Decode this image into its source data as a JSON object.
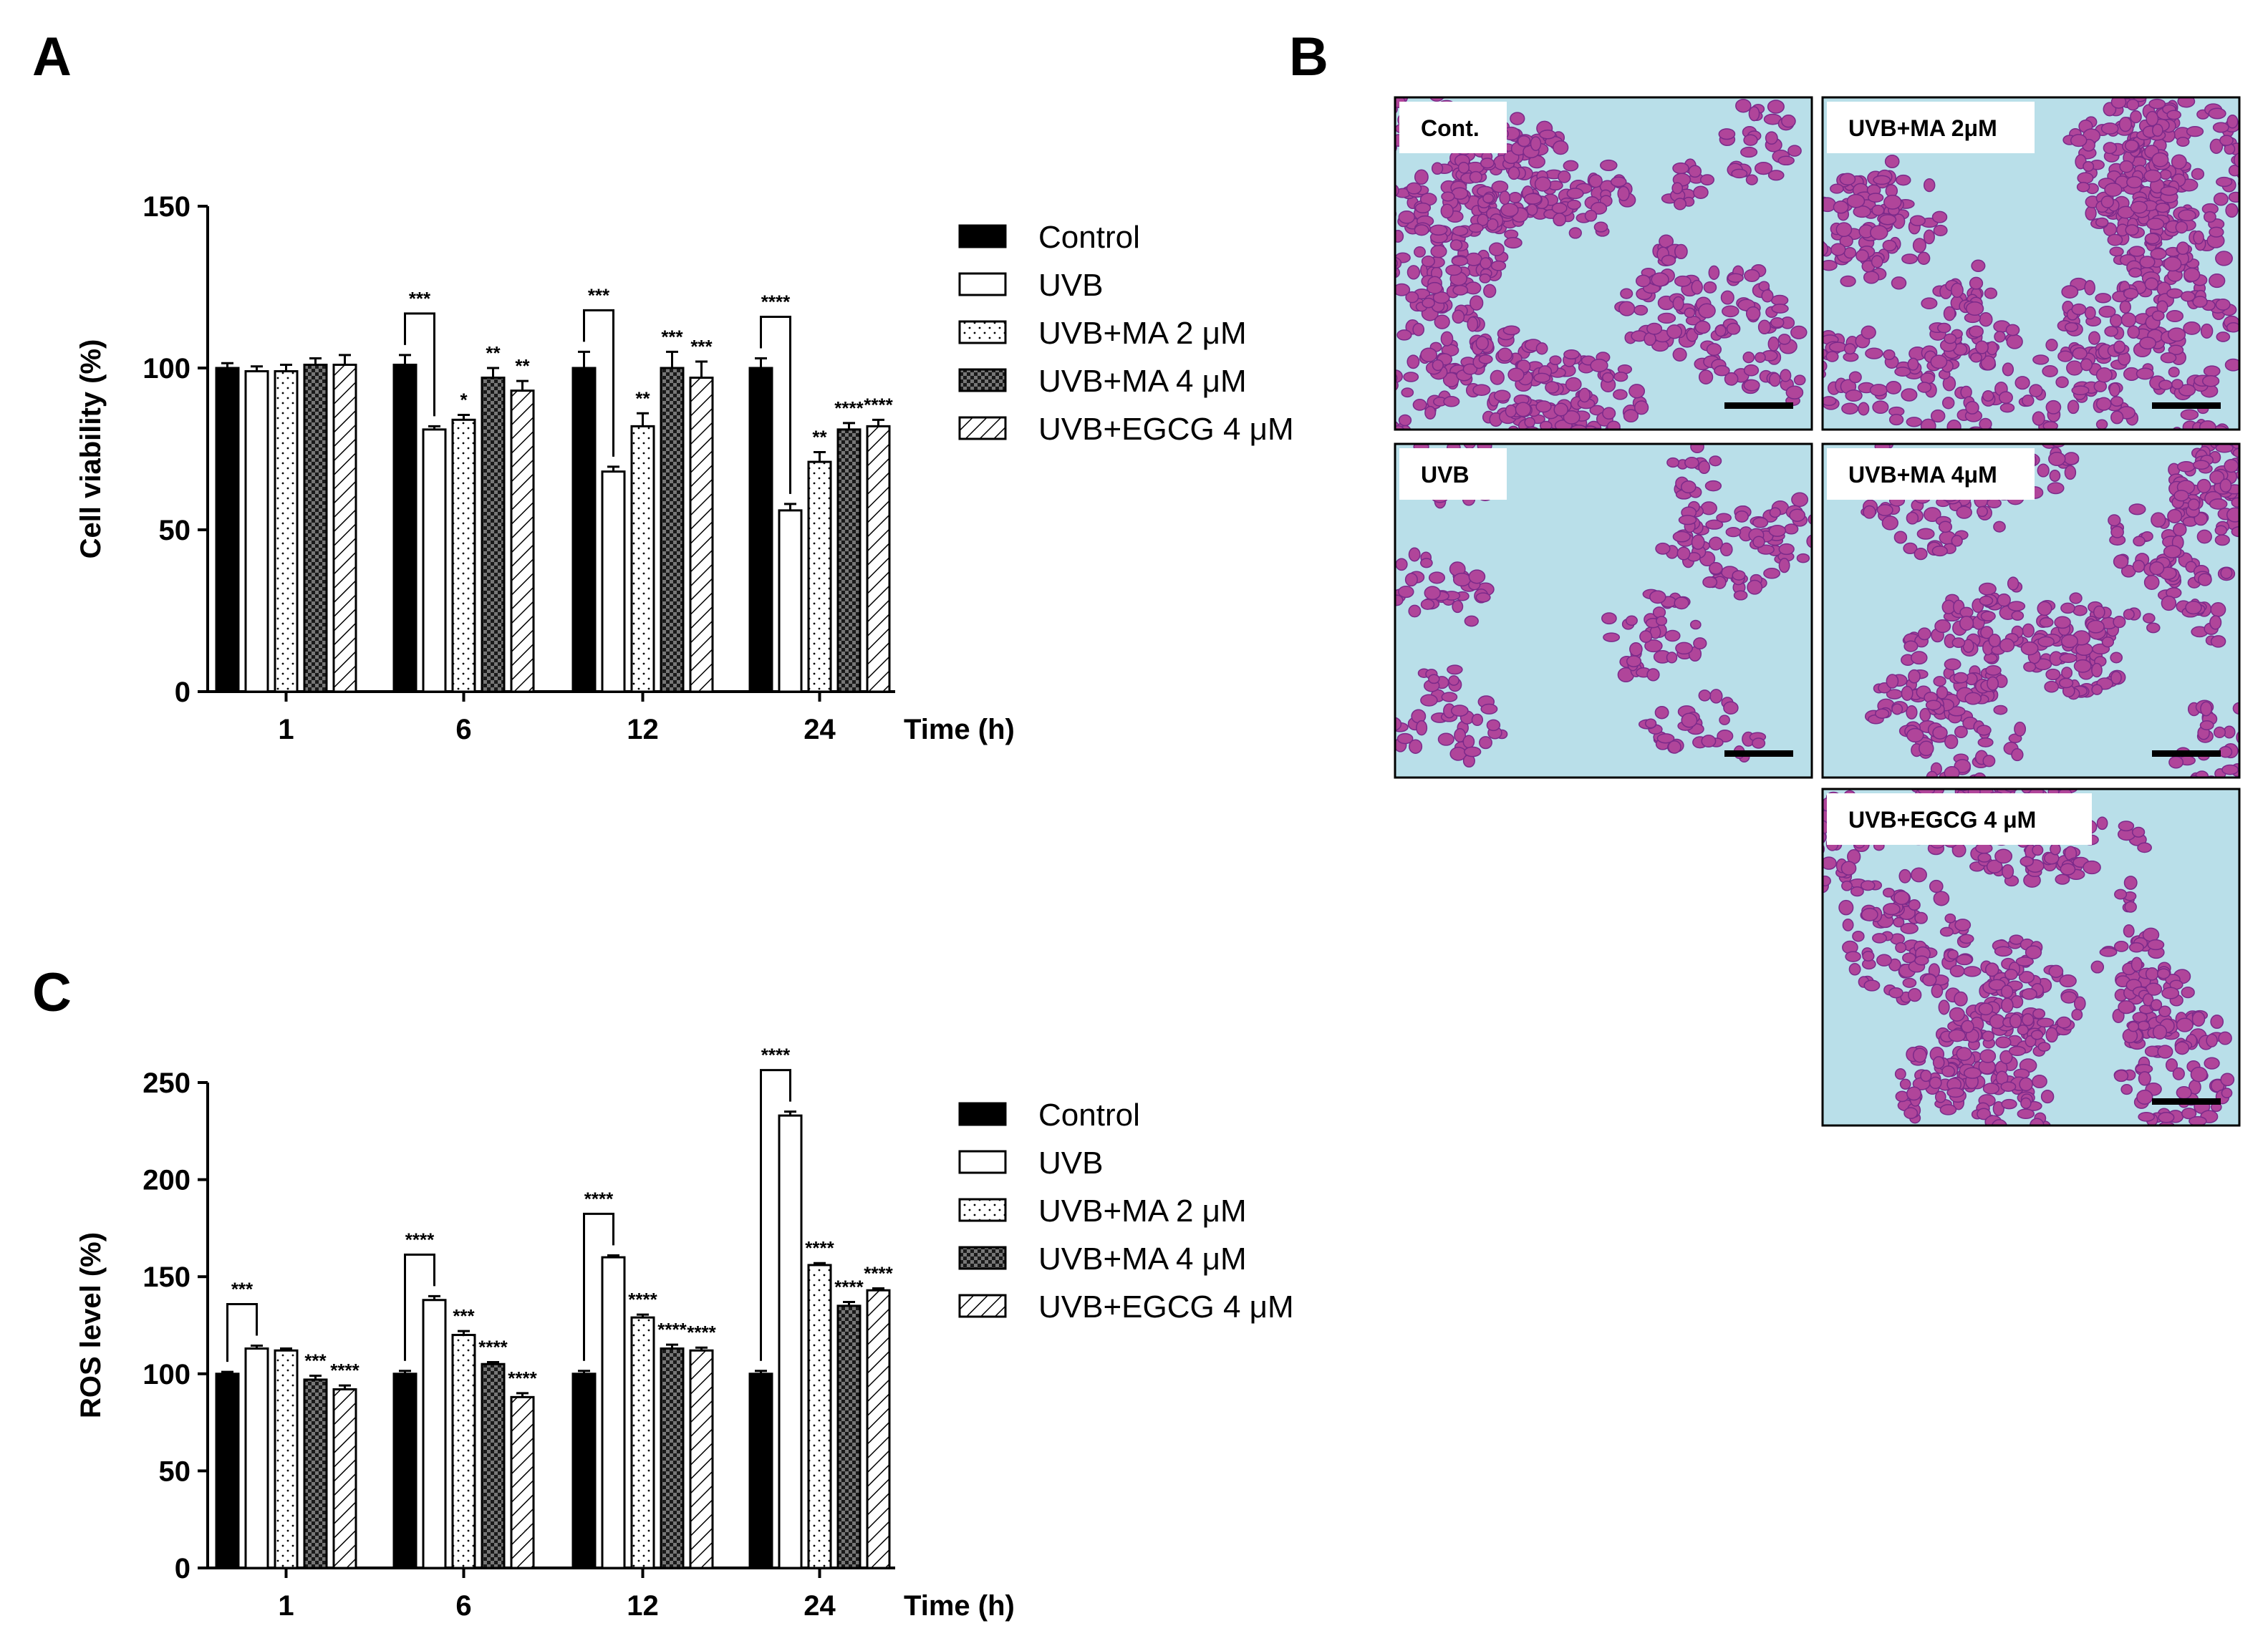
{
  "panels": {
    "a": "A",
    "b": "B",
    "c": "C"
  },
  "legend": {
    "items": [
      {
        "label": "Control",
        "pattern": "solid"
      },
      {
        "label": "UVB",
        "pattern": "white"
      },
      {
        "label": "UVB+MA 2 μM",
        "pattern": "dots"
      },
      {
        "label": "UVB+MA 4 μM",
        "pattern": "check"
      },
      {
        "label": "UVB+EGCG 4 μM",
        "pattern": "hatch"
      }
    ]
  },
  "chart_data": [
    {
      "id": "A",
      "type": "bar",
      "title": "",
      "xlabel": "Time (h)",
      "ylabel": "Cell viability (%)",
      "ylim": [
        0,
        150
      ],
      "yticks": [
        0,
        50,
        100,
        150
      ],
      "categories": [
        "1",
        "6",
        "12",
        "24"
      ],
      "series": [
        {
          "name": "Control",
          "values": [
            100,
            101,
            100,
            100
          ],
          "errors": [
            1.5,
            3,
            5,
            3
          ]
        },
        {
          "name": "UVB",
          "values": [
            99,
            81,
            68,
            56
          ],
          "errors": [
            1.5,
            1,
            1.5,
            2
          ]
        },
        {
          "name": "UVB+MA 2 μM",
          "values": [
            99,
            84,
            82,
            71
          ],
          "errors": [
            2,
            1.5,
            4,
            3
          ]
        },
        {
          "name": "UVB+MA 4 μM",
          "values": [
            101,
            97,
            100,
            81
          ],
          "errors": [
            2,
            3,
            5,
            2
          ]
        },
        {
          "name": "UVB+EGCG 4 μM",
          "values": [
            101,
            93,
            97,
            82
          ],
          "errors": [
            3,
            3,
            5,
            2
          ]
        }
      ],
      "significance": [
        {
          "category": 1,
          "bracket": true,
          "text": "***"
        },
        {
          "category": 1,
          "series": 2,
          "text": "*"
        },
        {
          "category": 1,
          "series": 3,
          "text": "**"
        },
        {
          "category": 1,
          "series": 4,
          "text": "**"
        },
        {
          "category": 2,
          "bracket": true,
          "text": "***"
        },
        {
          "category": 2,
          "series": 2,
          "text": "**"
        },
        {
          "category": 2,
          "series": 3,
          "text": "***"
        },
        {
          "category": 2,
          "series": 4,
          "text": "***"
        },
        {
          "category": 3,
          "bracket": true,
          "text": "****"
        },
        {
          "category": 3,
          "series": 2,
          "text": "**"
        },
        {
          "category": 3,
          "series": 3,
          "text": "****"
        },
        {
          "category": 3,
          "series": 4,
          "text": "****"
        }
      ]
    },
    {
      "id": "C",
      "type": "bar",
      "title": "",
      "xlabel": "Time (h)",
      "ylabel": "ROS level (%)",
      "ylim": [
        0,
        250
      ],
      "yticks": [
        0,
        50,
        100,
        150,
        200,
        250
      ],
      "categories": [
        "1",
        "6",
        "12",
        "24"
      ],
      "series": [
        {
          "name": "Control",
          "values": [
            100,
            100,
            100,
            100
          ],
          "errors": [
            1,
            1.5,
            1.5,
            1.5
          ]
        },
        {
          "name": "UVB",
          "values": [
            113,
            138,
            160,
            233
          ],
          "errors": [
            1.5,
            2,
            1,
            2
          ]
        },
        {
          "name": "UVB+MA 2 μM",
          "values": [
            112,
            120,
            129,
            156
          ],
          "errors": [
            1,
            2,
            1.5,
            1
          ]
        },
        {
          "name": "UVB+MA 4 μM",
          "values": [
            97,
            105,
            113,
            135
          ],
          "errors": [
            2,
            1,
            2,
            2
          ]
        },
        {
          "name": "UVB+EGCG 4 μM",
          "values": [
            92,
            88,
            112,
            143
          ],
          "errors": [
            2,
            2,
            1.5,
            1
          ]
        }
      ],
      "significance": [
        {
          "category": 0,
          "bracket": true,
          "text": "***"
        },
        {
          "category": 0,
          "series": 3,
          "text": "***"
        },
        {
          "category": 0,
          "series": 4,
          "text": "****"
        },
        {
          "category": 1,
          "bracket": true,
          "text": "****"
        },
        {
          "category": 1,
          "series": 2,
          "text": "***"
        },
        {
          "category": 1,
          "series": 3,
          "text": "****"
        },
        {
          "category": 1,
          "series": 4,
          "text": "****"
        },
        {
          "category": 2,
          "bracket": true,
          "text": "****"
        },
        {
          "category": 2,
          "series": 2,
          "text": "****"
        },
        {
          "category": 2,
          "series": 3,
          "text": "****"
        },
        {
          "category": 2,
          "series": 4,
          "text": "****"
        },
        {
          "category": 3,
          "bracket": true,
          "text": "****"
        },
        {
          "category": 3,
          "series": 2,
          "text": "****"
        },
        {
          "category": 3,
          "series": 3,
          "text": "****"
        },
        {
          "category": 3,
          "series": 4,
          "text": "****"
        }
      ]
    }
  ],
  "micrographs": [
    {
      "label": "Cont."
    },
    {
      "label": "UVB+MA 2μM"
    },
    {
      "label": "UVB"
    },
    {
      "label": "UVB+MA 4μM"
    },
    {
      "label": "UVB+EGCG  4 μM"
    }
  ],
  "colors": {
    "cell": "#b0459a",
    "cell_dark": "#7b2a8a",
    "background": "#b9dfe9",
    "bar": "#000000"
  }
}
